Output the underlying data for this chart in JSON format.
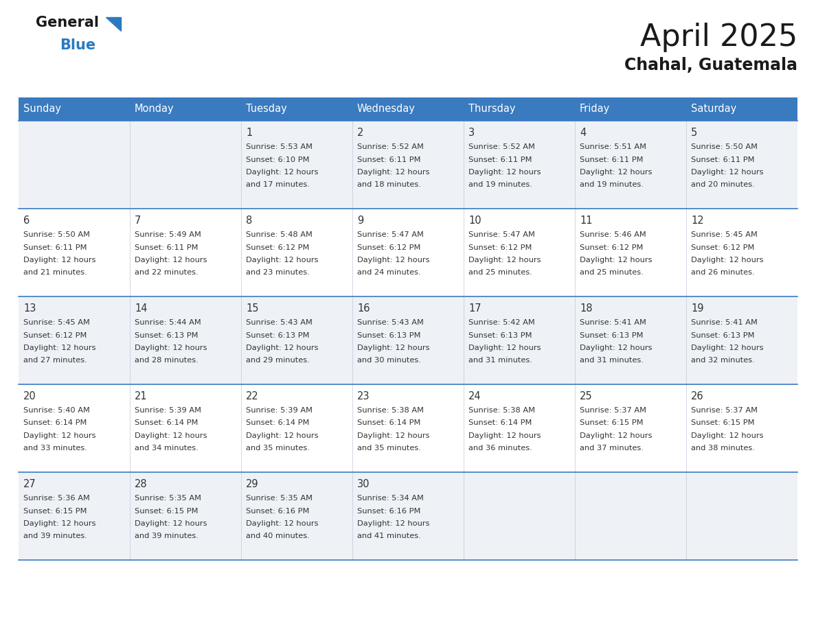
{
  "title": "April 2025",
  "subtitle": "Chahal, Guatemala",
  "header_bg": "#3a7abf",
  "header_text": "#ffffff",
  "row_bg_odd": "#eef2f7",
  "row_bg_even": "#ffffff",
  "cell_border": "#3a7abf",
  "text_color": "#333333",
  "day_headers": [
    "Sunday",
    "Monday",
    "Tuesday",
    "Wednesday",
    "Thursday",
    "Friday",
    "Saturday"
  ],
  "calendar": [
    [
      {
        "day": "",
        "sunrise": "",
        "sunset": "",
        "daylight_mins": ""
      },
      {
        "day": "",
        "sunrise": "",
        "sunset": "",
        "daylight_mins": ""
      },
      {
        "day": "1",
        "sunrise": "5:53 AM",
        "sunset": "6:10 PM",
        "daylight_mins": "17"
      },
      {
        "day": "2",
        "sunrise": "5:52 AM",
        "sunset": "6:11 PM",
        "daylight_mins": "18"
      },
      {
        "day": "3",
        "sunrise": "5:52 AM",
        "sunset": "6:11 PM",
        "daylight_mins": "19"
      },
      {
        "day": "4",
        "sunrise": "5:51 AM",
        "sunset": "6:11 PM",
        "daylight_mins": "19"
      },
      {
        "day": "5",
        "sunrise": "5:50 AM",
        "sunset": "6:11 PM",
        "daylight_mins": "20"
      }
    ],
    [
      {
        "day": "6",
        "sunrise": "5:50 AM",
        "sunset": "6:11 PM",
        "daylight_mins": "21"
      },
      {
        "day": "7",
        "sunrise": "5:49 AM",
        "sunset": "6:11 PM",
        "daylight_mins": "22"
      },
      {
        "day": "8",
        "sunrise": "5:48 AM",
        "sunset": "6:12 PM",
        "daylight_mins": "23"
      },
      {
        "day": "9",
        "sunrise": "5:47 AM",
        "sunset": "6:12 PM",
        "daylight_mins": "24"
      },
      {
        "day": "10",
        "sunrise": "5:47 AM",
        "sunset": "6:12 PM",
        "daylight_mins": "25"
      },
      {
        "day": "11",
        "sunrise": "5:46 AM",
        "sunset": "6:12 PM",
        "daylight_mins": "25"
      },
      {
        "day": "12",
        "sunrise": "5:45 AM",
        "sunset": "6:12 PM",
        "daylight_mins": "26"
      }
    ],
    [
      {
        "day": "13",
        "sunrise": "5:45 AM",
        "sunset": "6:12 PM",
        "daylight_mins": "27"
      },
      {
        "day": "14",
        "sunrise": "5:44 AM",
        "sunset": "6:13 PM",
        "daylight_mins": "28"
      },
      {
        "day": "15",
        "sunrise": "5:43 AM",
        "sunset": "6:13 PM",
        "daylight_mins": "29"
      },
      {
        "day": "16",
        "sunrise": "5:43 AM",
        "sunset": "6:13 PM",
        "daylight_mins": "30"
      },
      {
        "day": "17",
        "sunrise": "5:42 AM",
        "sunset": "6:13 PM",
        "daylight_mins": "31"
      },
      {
        "day": "18",
        "sunrise": "5:41 AM",
        "sunset": "6:13 PM",
        "daylight_mins": "31"
      },
      {
        "day": "19",
        "sunrise": "5:41 AM",
        "sunset": "6:13 PM",
        "daylight_mins": "32"
      }
    ],
    [
      {
        "day": "20",
        "sunrise": "5:40 AM",
        "sunset": "6:14 PM",
        "daylight_mins": "33"
      },
      {
        "day": "21",
        "sunrise": "5:39 AM",
        "sunset": "6:14 PM",
        "daylight_mins": "34"
      },
      {
        "day": "22",
        "sunrise": "5:39 AM",
        "sunset": "6:14 PM",
        "daylight_mins": "35"
      },
      {
        "day": "23",
        "sunrise": "5:38 AM",
        "sunset": "6:14 PM",
        "daylight_mins": "35"
      },
      {
        "day": "24",
        "sunrise": "5:38 AM",
        "sunset": "6:14 PM",
        "daylight_mins": "36"
      },
      {
        "day": "25",
        "sunrise": "5:37 AM",
        "sunset": "6:15 PM",
        "daylight_mins": "37"
      },
      {
        "day": "26",
        "sunrise": "5:37 AM",
        "sunset": "6:15 PM",
        "daylight_mins": "38"
      }
    ],
    [
      {
        "day": "27",
        "sunrise": "5:36 AM",
        "sunset": "6:15 PM",
        "daylight_mins": "39"
      },
      {
        "day": "28",
        "sunrise": "5:35 AM",
        "sunset": "6:15 PM",
        "daylight_mins": "39"
      },
      {
        "day": "29",
        "sunrise": "5:35 AM",
        "sunset": "6:16 PM",
        "daylight_mins": "40"
      },
      {
        "day": "30",
        "sunrise": "5:34 AM",
        "sunset": "6:16 PM",
        "daylight_mins": "41"
      },
      {
        "day": "",
        "sunrise": "",
        "sunset": "",
        "daylight_mins": ""
      },
      {
        "day": "",
        "sunrise": "",
        "sunset": "",
        "daylight_mins": ""
      },
      {
        "day": "",
        "sunrise": "",
        "sunset": "",
        "daylight_mins": ""
      }
    ]
  ],
  "logo_general_color": "#1a1a1a",
  "logo_blue_color": "#2a7abf",
  "logo_triangle_color": "#2a7abf",
  "fig_width": 11.88,
  "fig_height": 9.18,
  "dpi": 100
}
